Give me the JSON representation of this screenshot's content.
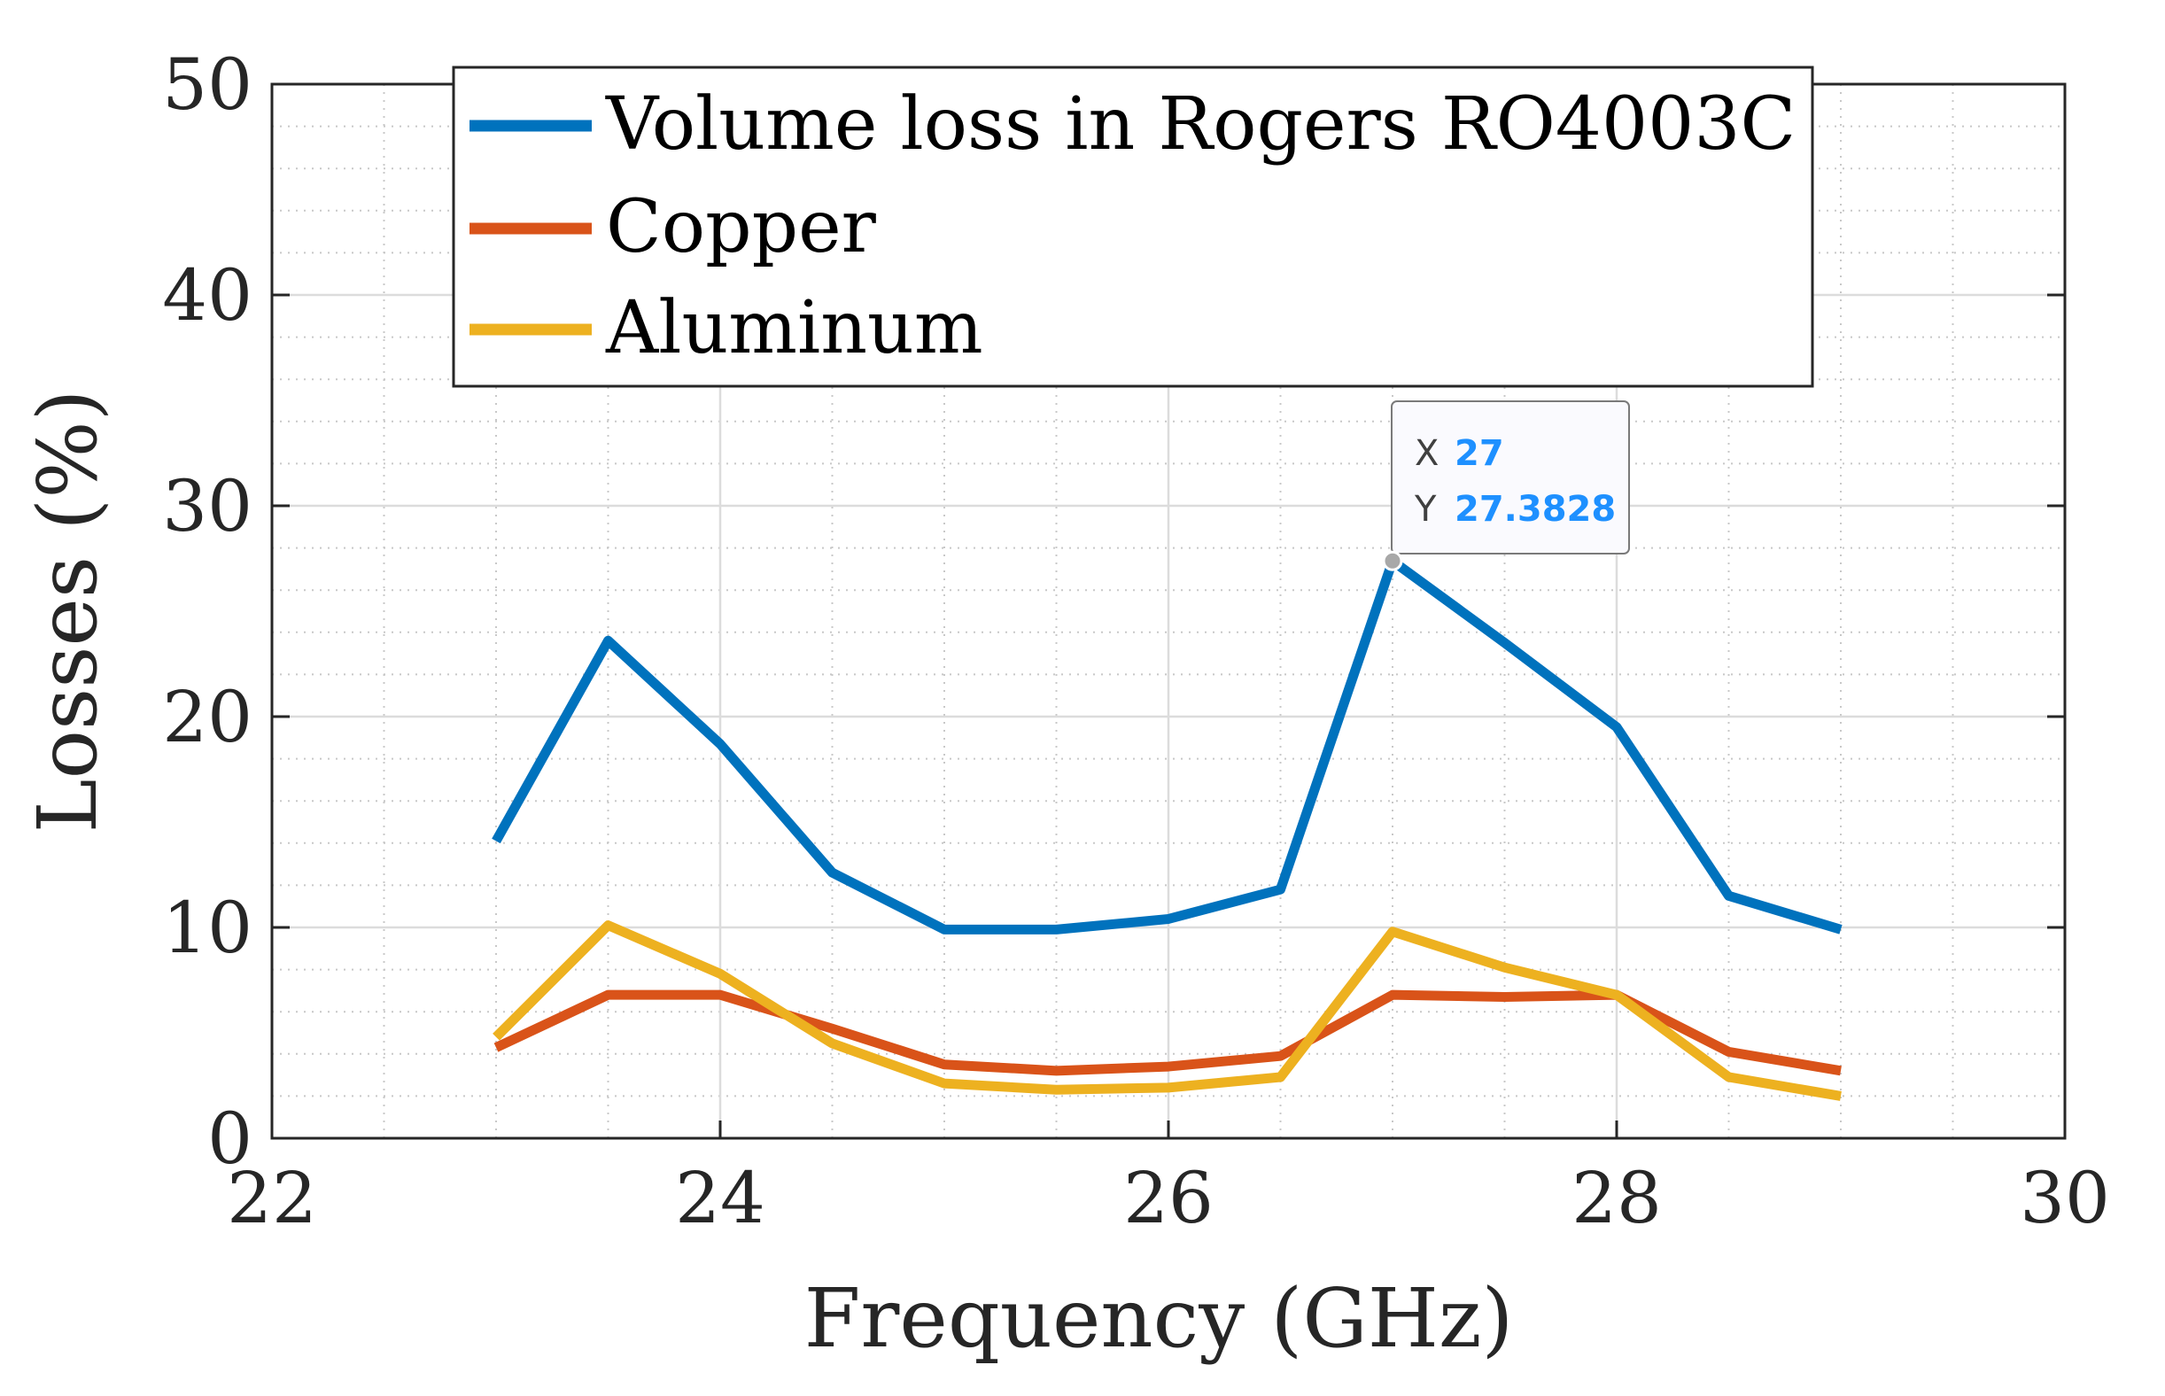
{
  "chart_data": {
    "type": "line",
    "title": "",
    "xlabel": "Frequency (GHz)",
    "ylabel": "Losses (%)",
    "xlim": [
      22,
      30
    ],
    "ylim": [
      0,
      50
    ],
    "xticks": [
      22,
      24,
      26,
      28,
      30
    ],
    "yticks": [
      0,
      10,
      20,
      30,
      40,
      50
    ],
    "x_tick_labels": [
      "22",
      "24",
      "26",
      "28",
      "30"
    ],
    "y_tick_labels": [
      "0",
      "10",
      "20",
      "30",
      "40",
      "50"
    ],
    "grid": true,
    "minor_grid": true,
    "legend_position": "top",
    "x": [
      23,
      23.5,
      24,
      24.5,
      25,
      25.5,
      26,
      26.5,
      27,
      27.5,
      28,
      28.5,
      29
    ],
    "series": [
      {
        "name": "Volume loss in Rogers RO4003C",
        "color": "#0072BD",
        "values": [
          14.1,
          23.6,
          18.7,
          12.6,
          9.9,
          9.9,
          10.4,
          11.8,
          27.3828,
          23.5,
          19.5,
          11.5,
          9.9
        ]
      },
      {
        "name": "Copper",
        "color": "#D95319",
        "values": [
          4.3,
          6.8,
          6.8,
          5.2,
          3.5,
          3.2,
          3.4,
          3.9,
          6.8,
          6.7,
          6.8,
          4.1,
          3.2
        ]
      },
      {
        "name": "Aluminum",
        "color": "#EDB120",
        "values": [
          4.8,
          10.1,
          7.8,
          4.5,
          2.6,
          2.3,
          2.4,
          2.9,
          9.8,
          8.1,
          6.8,
          2.9,
          2.0
        ]
      }
    ],
    "datatip": {
      "x_label": "X",
      "y_label": "Y",
      "x_value": "27",
      "y_value": "27.3828",
      "x": 27,
      "y": 27.3828
    }
  }
}
